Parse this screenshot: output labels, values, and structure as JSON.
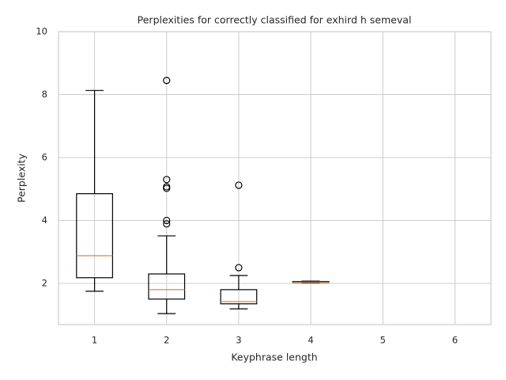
{
  "chart_data": {
    "type": "box",
    "title": "Perplexities for correctly classified for exhird h semeval",
    "x_label": "Keyphrase length",
    "y_label": "Perplexity",
    "xlim": [
      0.5,
      6.5
    ],
    "xticks": [
      1,
      2,
      3,
      4,
      5,
      6
    ],
    "ylim": [
      0.69,
      10
    ],
    "yticks": [
      2,
      4,
      6,
      8,
      10
    ],
    "grid": true,
    "box_color": "#000000",
    "median_color": "#dd8452",
    "boxes": [
      {
        "x": 1,
        "whislo": 1.75,
        "q1": 2.18,
        "med": 2.88,
        "q3": 4.85,
        "whishi": 8.13,
        "fliers": []
      },
      {
        "x": 2,
        "whislo": 1.04,
        "q1": 1.5,
        "med": 1.8,
        "q3": 2.3,
        "whishi": 3.51,
        "fliers": [
          8.45,
          5.3,
          5.07,
          5.02,
          4.0,
          3.89
        ]
      },
      {
        "x": 3,
        "whislo": 1.19,
        "q1": 1.35,
        "med": 1.42,
        "q3": 1.8,
        "whishi": 2.25,
        "fliers": [
          2.5,
          5.12
        ]
      },
      {
        "x": 4,
        "whislo": 2.02,
        "q1": 2.03,
        "med": 2.04,
        "q3": 2.06,
        "whishi": 2.07,
        "fliers": []
      }
    ]
  }
}
